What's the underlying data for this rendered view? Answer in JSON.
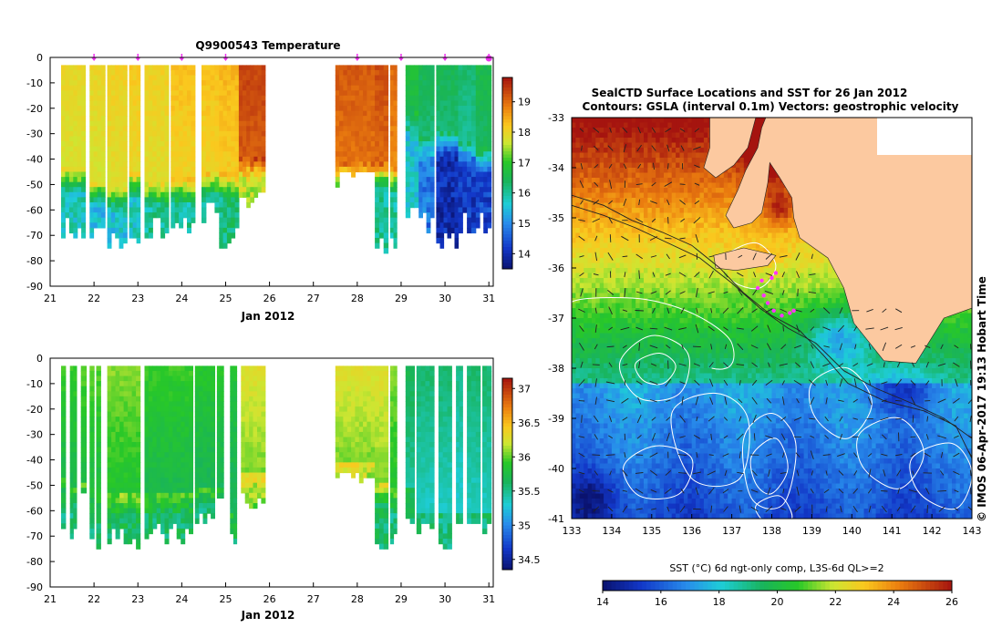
{
  "colors": {
    "land": "#fcc9a0",
    "frame": "#000000",
    "contour": "#ffffff",
    "track": "#ff33ff",
    "arrow": "#444444"
  },
  "chart_data": [
    {
      "id": "temperature_section",
      "type": "heatmap",
      "title": "Q9900543  Temperature",
      "xlabel": "Jan 2012",
      "ylabel": "",
      "xlim": [
        21,
        31.1
      ],
      "ylim": [
        -90,
        0
      ],
      "xticks": [
        21,
        22,
        23,
        24,
        25,
        26,
        27,
        28,
        29,
        30,
        31
      ],
      "yticks": [
        0,
        -10,
        -20,
        -30,
        -40,
        -50,
        -60,
        -70,
        -80,
        -90
      ],
      "profile_markers": [
        22,
        23,
        24,
        25,
        28,
        29,
        30,
        31
      ],
      "colorbar": {
        "ticks": [
          14,
          15,
          16,
          17,
          18,
          19
        ],
        "range": [
          13.5,
          19.8
        ]
      },
      "profiles": [
        {
          "t0": 21.25,
          "t1": 21.8,
          "bottom": 68,
          "surface": 18.0,
          "mld": 43,
          "deep": 15.8
        },
        {
          "t0": 21.9,
          "t1": 22.25,
          "bottom": 70,
          "surface": 18.0,
          "mld": 48,
          "deep": 15.5
        },
        {
          "t0": 22.3,
          "t1": 22.75,
          "bottom": 70,
          "surface": 18.1,
          "mld": 50,
          "deep": 15.6
        },
        {
          "t0": 22.8,
          "t1": 23.05,
          "bottom": 68,
          "surface": 18.2,
          "mld": 45,
          "deep": 15.7
        },
        {
          "t0": 23.15,
          "t1": 23.7,
          "bottom": 66,
          "surface": 18.1,
          "mld": 48,
          "deep": 16.0
        },
        {
          "t0": 23.75,
          "t1": 24.3,
          "bottom": 66,
          "surface": 18.3,
          "mld": 47,
          "deep": 16.0
        },
        {
          "t0": 24.45,
          "t1": 24.85,
          "bottom": 62,
          "surface": 18.3,
          "mld": 44,
          "deep": 16.1
        },
        {
          "t0": 24.85,
          "t1": 25.3,
          "bottom": 70,
          "surface": 18.4,
          "mld": 45,
          "deep": 16.2
        },
        {
          "t0": 25.3,
          "t1": 25.9,
          "bottom": 55,
          "surface": 19.4,
          "mld": 38,
          "deep": 17.6
        },
        {
          "t0": 27.5,
          "t1": 28.4,
          "bottom": 45,
          "surface": 19.2,
          "mld": 40,
          "deep": 17.0
        },
        {
          "t0": 28.4,
          "t1": 28.7,
          "bottom": 72,
          "surface": 19.3,
          "mld": 40,
          "deep": 16.0
        },
        {
          "t0": 28.75,
          "t1": 28.9,
          "bottom": 72,
          "surface": 19.0,
          "mld": 42,
          "deep": 16.0
        },
        {
          "t0": 29.1,
          "t1": 29.4,
          "bottom": 60,
          "surface": 16.8,
          "mld": 20,
          "deep": 15.6
        },
        {
          "t0": 29.4,
          "t1": 29.75,
          "bottom": 65,
          "surface": 16.5,
          "mld": 30,
          "deep": 14.8
        },
        {
          "t0": 29.8,
          "t1": 30.3,
          "bottom": 72,
          "surface": 16.5,
          "mld": 28,
          "deep": 14.0
        },
        {
          "t0": 30.3,
          "t1": 30.7,
          "bottom": 65,
          "surface": 16.3,
          "mld": 32,
          "deep": 14.2
        },
        {
          "t0": 30.7,
          "t1": 31.05,
          "bottom": 66,
          "surface": 16.6,
          "mld": 35,
          "deep": 14.3
        }
      ]
    },
    {
      "id": "salinity_section",
      "type": "heatmap",
      "title": "",
      "xlabel": "Jan 2012",
      "ylabel": "",
      "xlim": [
        21,
        31.1
      ],
      "ylim": [
        -90,
        0
      ],
      "xticks": [
        21,
        22,
        23,
        24,
        25,
        26,
        27,
        28,
        29,
        30,
        31
      ],
      "yticks": [
        0,
        -10,
        -20,
        -30,
        -40,
        -50,
        -60,
        -70,
        -80,
        -90
      ],
      "colorbar": {
        "ticks": [
          34.5,
          35,
          35.5,
          36,
          36.5,
          37
        ],
        "range": [
          34.35,
          37.15
        ]
      },
      "profiles": [
        {
          "t0": 21.25,
          "t1": 21.35,
          "bottom": 64,
          "surface": 35.95,
          "mld": 47,
          "deep": 35.55
        },
        {
          "t0": 21.45,
          "t1": 21.6,
          "bottom": 70,
          "surface": 35.95,
          "mld": 50,
          "deep": 35.55
        },
        {
          "t0": 21.7,
          "t1": 21.82,
          "bottom": 55,
          "surface": 36.0,
          "mld": 48,
          "deep": 35.55
        },
        {
          "t0": 21.9,
          "t1": 22.0,
          "bottom": 65,
          "surface": 36.0,
          "mld": 50,
          "deep": 35.55
        },
        {
          "t0": 22.05,
          "t1": 22.15,
          "bottom": 70,
          "surface": 36.0,
          "mld": 50,
          "deep": 35.6
        },
        {
          "t0": 22.3,
          "t1": 23.05,
          "bottom": 70,
          "surface": 36.1,
          "mld": 52,
          "deep": 35.65
        },
        {
          "t0": 23.15,
          "t1": 24.25,
          "bottom": 68,
          "surface": 35.95,
          "mld": 52,
          "deep": 35.6
        },
        {
          "t0": 24.3,
          "t1": 24.75,
          "bottom": 62,
          "surface": 35.9,
          "mld": 50,
          "deep": 35.55
        },
        {
          "t0": 24.8,
          "t1": 24.95,
          "bottom": 55,
          "surface": 35.9,
          "mld": 50,
          "deep": 35.6
        },
        {
          "t0": 25.1,
          "t1": 25.25,
          "bottom": 70,
          "surface": 35.85,
          "mld": 60,
          "deep": 35.6
        },
        {
          "t0": 25.35,
          "t1": 25.9,
          "bottom": 55,
          "surface": 36.3,
          "mld": 45,
          "deep": 36.05
        },
        {
          "t0": 27.5,
          "t1": 28.4,
          "bottom": 45,
          "surface": 36.3,
          "mld": 40,
          "deep": 36.0
        },
        {
          "t0": 28.4,
          "t1": 28.7,
          "bottom": 72,
          "surface": 36.3,
          "mld": 48,
          "deep": 35.6
        },
        {
          "t0": 28.75,
          "t1": 28.9,
          "bottom": 72,
          "surface": 36.1,
          "mld": 50,
          "deep": 35.5
        },
        {
          "t0": 29.1,
          "t1": 29.3,
          "bottom": 60,
          "surface": 35.7,
          "mld": 50,
          "deep": 35.55
        },
        {
          "t0": 29.35,
          "t1": 29.75,
          "bottom": 65,
          "surface": 35.6,
          "mld": 60,
          "deep": 35.5
        },
        {
          "t0": 29.85,
          "t1": 30.15,
          "bottom": 72,
          "surface": 35.6,
          "mld": 60,
          "deep": 35.5
        },
        {
          "t0": 30.25,
          "t1": 30.4,
          "bottom": 63,
          "surface": 35.55,
          "mld": 60,
          "deep": 35.5
        },
        {
          "t0": 30.5,
          "t1": 30.8,
          "bottom": 65,
          "surface": 35.6,
          "mld": 60,
          "deep": 35.5
        },
        {
          "t0": 30.85,
          "t1": 31.05,
          "bottom": 66,
          "surface": 35.6,
          "mld": 60,
          "deep": 35.5
        }
      ]
    },
    {
      "id": "sst_map",
      "type": "heatmap",
      "title": "SealCTD Surface Locations and SST for 26 Jan 2012",
      "subtitle": "Contours: GSLA (interval 0.1m) Vectors: geostrophic velocity",
      "xlabel": "",
      "ylabel": "",
      "xlim": [
        133,
        143
      ],
      "ylim": [
        -41,
        -33
      ],
      "xticks": [
        133,
        134,
        135,
        136,
        137,
        138,
        139,
        140,
        141,
        142,
        143
      ],
      "yticks": [
        -33,
        -34,
        -35,
        -36,
        -37,
        -38,
        -39,
        -40,
        -41
      ],
      "colorbar": {
        "label": "SST (°C) 6d ngt-only comp, L3S-6d QL>=2",
        "ticks": [
          14,
          16,
          18,
          20,
          22,
          24,
          26
        ],
        "range": [
          14,
          26
        ]
      },
      "side_label": "© IMOS 06-Apr-2017 19:13 Hobart Time",
      "land": [
        [
          [
            136.45,
            -33
          ],
          [
            143,
            -33
          ],
          [
            143,
            -36.8
          ],
          [
            142.3,
            -37.0
          ],
          [
            141.6,
            -37.9
          ],
          [
            140.8,
            -37.85
          ],
          [
            140.05,
            -37.1
          ],
          [
            139.8,
            -36.4
          ],
          [
            139.4,
            -35.8
          ],
          [
            139.05,
            -35.6
          ],
          [
            138.7,
            -35.4
          ],
          [
            138.55,
            -35.0
          ],
          [
            138.5,
            -34.6
          ],
          [
            138.2,
            -34.2
          ],
          [
            137.95,
            -33.9
          ],
          [
            137.9,
            -34.3
          ],
          [
            137.75,
            -34.9
          ],
          [
            137.5,
            -35.1
          ],
          [
            137.05,
            -35.2
          ],
          [
            136.85,
            -34.95
          ],
          [
            137.15,
            -34.45
          ],
          [
            137.35,
            -34.05
          ],
          [
            137.65,
            -33.6
          ],
          [
            137.75,
            -33.2
          ],
          [
            137.85,
            -33
          ],
          [
            137.6,
            -33
          ],
          [
            137.4,
            -33.6
          ],
          [
            137.05,
            -33.95
          ],
          [
            136.6,
            -34.2
          ],
          [
            136.3,
            -34.0
          ],
          [
            136.45,
            -33.6
          ],
          [
            136.45,
            -33
          ]
        ],
        [
          [
            136.55,
            -35.75
          ],
          [
            137.3,
            -35.6
          ],
          [
            138.1,
            -35.75
          ],
          [
            137.9,
            -35.95
          ],
          [
            137.1,
            -36.05
          ],
          [
            136.6,
            -36.0
          ]
        ]
      ],
      "track": [
        [
          138.1,
          -36.1
        ],
        [
          138.0,
          -36.2
        ],
        [
          137.75,
          -36.25
        ],
        [
          137.65,
          -36.4
        ],
        [
          137.8,
          -36.55
        ],
        [
          137.9,
          -36.7
        ],
        [
          138.05,
          -36.85
        ],
        [
          138.25,
          -36.95
        ],
        [
          138.45,
          -36.9
        ],
        [
          138.55,
          -36.85
        ]
      ],
      "fronts": [
        [
          [
            133,
            -34.55
          ],
          [
            133.8,
            -34.75
          ],
          [
            134.5,
            -35.05
          ],
          [
            135.3,
            -35.3
          ],
          [
            136.0,
            -35.55
          ],
          [
            136.7,
            -36.0
          ],
          [
            137.3,
            -36.5
          ],
          [
            138.0,
            -36.95
          ],
          [
            138.7,
            -37.25
          ],
          [
            139.3,
            -37.75
          ],
          [
            139.9,
            -38.3
          ],
          [
            140.8,
            -38.65
          ],
          [
            141.8,
            -38.85
          ],
          [
            142.6,
            -39.15
          ],
          [
            143,
            -39.8
          ]
        ],
        [
          [
            133,
            -34.75
          ],
          [
            133.8,
            -34.95
          ],
          [
            134.6,
            -35.2
          ],
          [
            135.4,
            -35.5
          ],
          [
            136.2,
            -35.8
          ],
          [
            137.0,
            -36.3
          ],
          [
            137.7,
            -36.8
          ],
          [
            138.4,
            -37.2
          ],
          [
            139.1,
            -37.5
          ],
          [
            139.8,
            -38.05
          ],
          [
            140.6,
            -38.4
          ],
          [
            141.5,
            -38.7
          ],
          [
            142.3,
            -39.0
          ],
          [
            143,
            -39.4
          ]
        ]
      ],
      "contours": [
        [
          [
            134.6,
            -37.9
          ],
          [
            135.2,
            -37.7
          ],
          [
            135.6,
            -37.95
          ],
          [
            135.3,
            -38.3
          ],
          [
            134.8,
            -38.25
          ]
        ],
        [
          [
            134.2,
            -37.9
          ],
          [
            135.0,
            -37.35
          ],
          [
            135.9,
            -37.7
          ],
          [
            135.7,
            -38.5
          ],
          [
            134.7,
            -38.6
          ]
        ],
        [
          [
            134.3,
            -39.95
          ],
          [
            135.1,
            -39.55
          ],
          [
            136.0,
            -39.8
          ],
          [
            135.7,
            -40.5
          ],
          [
            134.7,
            -40.55
          ]
        ],
        [
          [
            135.5,
            -38.9
          ],
          [
            136.6,
            -38.5
          ],
          [
            137.4,
            -39.0
          ],
          [
            137.2,
            -40.2
          ],
          [
            136.0,
            -40.2
          ]
        ],
        [
          [
            137.3,
            -39.4
          ],
          [
            138.0,
            -38.9
          ],
          [
            138.6,
            -39.5
          ],
          [
            138.3,
            -40.7
          ],
          [
            137.5,
            -40.6
          ]
        ],
        [
          [
            137.5,
            -39.75
          ],
          [
            138.1,
            -39.4
          ],
          [
            138.4,
            -40.0
          ],
          [
            138.0,
            -40.5
          ],
          [
            137.6,
            -40.3
          ]
        ],
        [
          [
            137.6,
            -40.75
          ],
          [
            138.2,
            -40.55
          ],
          [
            138.5,
            -41.0
          ],
          [
            137.9,
            -41.1
          ]
        ],
        [
          [
            139.0,
            -38.3
          ],
          [
            139.9,
            -38.0
          ],
          [
            140.5,
            -38.7
          ],
          [
            139.9,
            -39.4
          ],
          [
            139.1,
            -39.0
          ]
        ],
        [
          [
            140.2,
            -39.3
          ],
          [
            141.2,
            -39.0
          ],
          [
            141.8,
            -39.7
          ],
          [
            141.2,
            -40.4
          ],
          [
            140.3,
            -40.0
          ]
        ],
        [
          [
            141.5,
            -39.8
          ],
          [
            142.5,
            -39.5
          ],
          [
            143.0,
            -40.1
          ],
          [
            142.6,
            -40.8
          ],
          [
            141.7,
            -40.5
          ]
        ],
        [
          [
            133.0,
            -36.8
          ],
          [
            134.5,
            -36.6
          ],
          [
            136.0,
            -36.9
          ],
          [
            137.0,
            -37.5
          ],
          [
            136.5,
            -38.0
          ]
        ],
        [
          [
            136.8,
            -35.8
          ],
          [
            137.6,
            -35.5
          ],
          [
            138.1,
            -35.95
          ],
          [
            137.7,
            -36.4
          ],
          [
            137.0,
            -36.25
          ]
        ]
      ]
    }
  ]
}
